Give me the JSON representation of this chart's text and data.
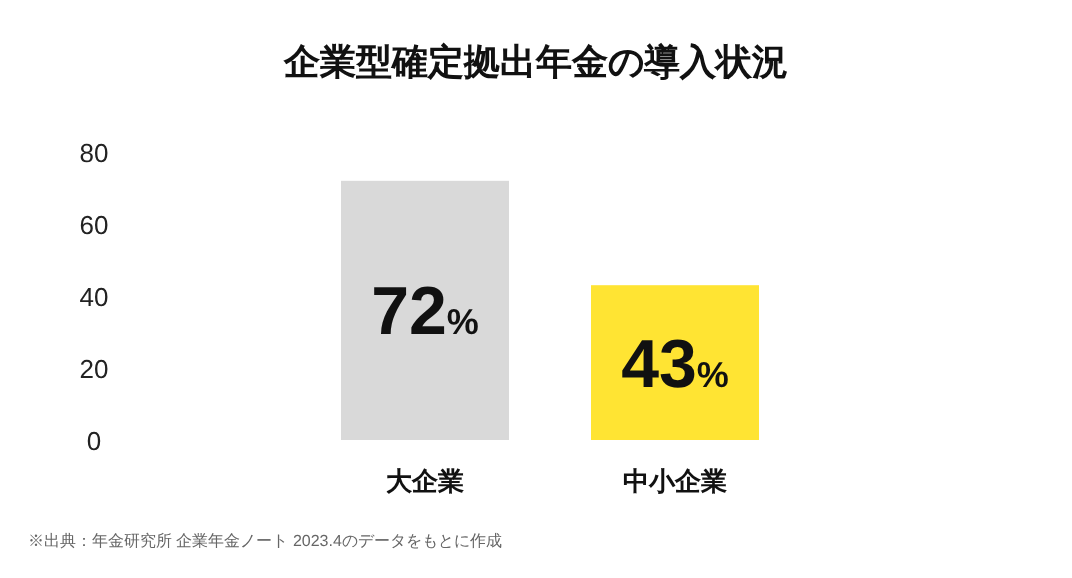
{
  "chart_data": {
    "type": "bar",
    "title": "企業型確定拠出年金の導入状況",
    "categories": [
      "大企業",
      "中小企業"
    ],
    "values": [
      72,
      43
    ],
    "colors": [
      "#d9d9d9",
      "#ffe433"
    ],
    "value_labels": [
      "72%",
      "43%"
    ],
    "ylim": [
      0,
      80
    ],
    "yticks": [
      0,
      20,
      40,
      60,
      80
    ],
    "annotations": [
      "※出典：年金研究所 企業年金ノート 2023.4のデータをもとに作成"
    ]
  }
}
